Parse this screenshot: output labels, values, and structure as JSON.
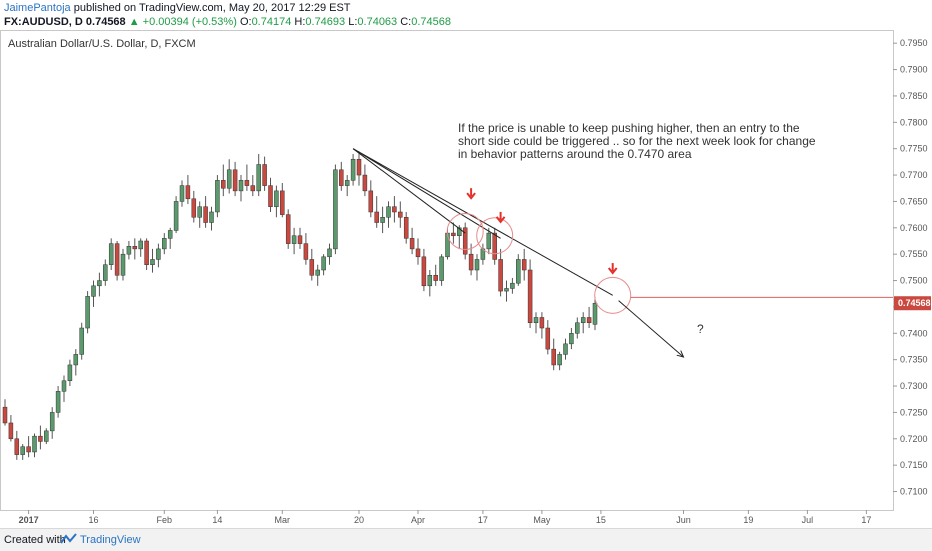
{
  "header": {
    "author": "JaimePantoja",
    "published_text": "published on TradingView.com, May 20, 2017 12:29 EST",
    "symbol_text": "FX:AUDUSD, D",
    "last_price": "0.74568",
    "change_text": "▲ +0.00394 (+0.53%)",
    "o_label": "O:",
    "o_value": "0.74174",
    "h_label": "H:",
    "h_value": "0.74693",
    "l_label": "L:",
    "l_value": "0.74063",
    "c_label": "C:",
    "c_value": "0.74568"
  },
  "pane_title": "Australian Dollar/U.S. Dollar, D, FXCM",
  "annotation": "If the price is unable to keep pushing higher, then an entry to the short side could be triggered .. so for the next week look for change in behavior patterns around the 0.7470 area",
  "question_mark": "?",
  "footer": {
    "created_with": "Created with",
    "brand": "TradingView"
  },
  "colors": {
    "up": "#5b9a6c",
    "down": "#c9483f",
    "level": "#e06060",
    "annot_red": "#e3302b",
    "axis_text": "#555555"
  },
  "chart_data": {
    "type": "candlestick",
    "symbol": "FX:AUDUSD",
    "timeframe": "D",
    "y_range": [
      0.7065,
      0.7975
    ],
    "y_ticks": [
      0.71,
      0.715,
      0.72,
      0.725,
      0.73,
      0.735,
      0.74,
      0.745,
      0.75,
      0.755,
      0.76,
      0.765,
      0.77,
      0.775,
      0.78,
      0.785,
      0.79,
      0.795
    ],
    "x_ticks": [
      {
        "label": "2017",
        "bar": 4
      },
      {
        "label": "16",
        "bar": 15
      },
      {
        "label": "Feb",
        "bar": 27
      },
      {
        "label": "14",
        "bar": 36
      },
      {
        "label": "Mar",
        "bar": 47
      },
      {
        "label": "20",
        "bar": 60
      },
      {
        "label": "Apr",
        "bar": 70
      },
      {
        "label": "17",
        "bar": 81
      },
      {
        "label": "May",
        "bar": 91
      },
      {
        "label": "15",
        "bar": 101
      },
      {
        "label": "Jun",
        "bar": 115
      },
      {
        "label": "19",
        "bar": 126
      },
      {
        "label": "Jul",
        "bar": 136
      },
      {
        "label": "17",
        "bar": 146
      }
    ],
    "last_price_label": "0.74568",
    "level_line": 0.7468,
    "candles": [
      [
        0.726,
        0.7275,
        0.7225,
        0.723
      ],
      [
        0.723,
        0.7245,
        0.7195,
        0.72
      ],
      [
        0.72,
        0.7215,
        0.716,
        0.717
      ],
      [
        0.717,
        0.719,
        0.716,
        0.7185
      ],
      [
        0.7185,
        0.7205,
        0.7165,
        0.7175
      ],
      [
        0.7175,
        0.721,
        0.7165,
        0.7205
      ],
      [
        0.7205,
        0.7225,
        0.718,
        0.7195
      ],
      [
        0.7195,
        0.722,
        0.719,
        0.7215
      ],
      [
        0.7215,
        0.726,
        0.72,
        0.725
      ],
      [
        0.725,
        0.73,
        0.724,
        0.729
      ],
      [
        0.729,
        0.732,
        0.727,
        0.731
      ],
      [
        0.731,
        0.735,
        0.73,
        0.734
      ],
      [
        0.734,
        0.737,
        0.732,
        0.736
      ],
      [
        0.736,
        0.742,
        0.735,
        0.741
      ],
      [
        0.741,
        0.748,
        0.74,
        0.747
      ],
      [
        0.747,
        0.75,
        0.745,
        0.749
      ],
      [
        0.749,
        0.7515,
        0.747,
        0.75
      ],
      [
        0.75,
        0.754,
        0.749,
        0.753
      ],
      [
        0.753,
        0.758,
        0.752,
        0.757
      ],
      [
        0.757,
        0.7575,
        0.75,
        0.751
      ],
      [
        0.751,
        0.756,
        0.75,
        0.755
      ],
      [
        0.755,
        0.7575,
        0.754,
        0.7565
      ],
      [
        0.7565,
        0.758,
        0.754,
        0.756
      ],
      [
        0.756,
        0.758,
        0.7545,
        0.7575
      ],
      [
        0.7575,
        0.758,
        0.752,
        0.753
      ],
      [
        0.753,
        0.756,
        0.7515,
        0.754
      ],
      [
        0.754,
        0.757,
        0.7525,
        0.756
      ],
      [
        0.756,
        0.759,
        0.755,
        0.758
      ],
      [
        0.758,
        0.76,
        0.756,
        0.7595
      ],
      [
        0.7595,
        0.766,
        0.759,
        0.765
      ],
      [
        0.765,
        0.769,
        0.764,
        0.768
      ],
      [
        0.768,
        0.77,
        0.7645,
        0.7655
      ],
      [
        0.7655,
        0.767,
        0.761,
        0.762
      ],
      [
        0.762,
        0.765,
        0.76,
        0.764
      ],
      [
        0.764,
        0.766,
        0.76,
        0.761
      ],
      [
        0.761,
        0.764,
        0.7595,
        0.763
      ],
      [
        0.763,
        0.77,
        0.762,
        0.769
      ],
      [
        0.769,
        0.772,
        0.766,
        0.7675
      ],
      [
        0.7675,
        0.773,
        0.7665,
        0.771
      ],
      [
        0.771,
        0.7725,
        0.766,
        0.767
      ],
      [
        0.767,
        0.77,
        0.765,
        0.769
      ],
      [
        0.769,
        0.772,
        0.767,
        0.768
      ],
      [
        0.768,
        0.77,
        0.766,
        0.767
      ],
      [
        0.767,
        0.774,
        0.766,
        0.772
      ],
      [
        0.772,
        0.7735,
        0.767,
        0.768
      ],
      [
        0.768,
        0.7695,
        0.763,
        0.764
      ],
      [
        0.764,
        0.768,
        0.762,
        0.767
      ],
      [
        0.767,
        0.7685,
        0.762,
        0.7625
      ],
      [
        0.7625,
        0.7635,
        0.756,
        0.757
      ],
      [
        0.757,
        0.76,
        0.755,
        0.7585
      ],
      [
        0.7585,
        0.76,
        0.756,
        0.757
      ],
      [
        0.757,
        0.759,
        0.753,
        0.754
      ],
      [
        0.754,
        0.756,
        0.75,
        0.751
      ],
      [
        0.751,
        0.753,
        0.749,
        0.752
      ],
      [
        0.752,
        0.755,
        0.751,
        0.7545
      ],
      [
        0.7545,
        0.757,
        0.753,
        0.756
      ],
      [
        0.756,
        0.772,
        0.755,
        0.771
      ],
      [
        0.771,
        0.7725,
        0.767,
        0.768
      ],
      [
        0.768,
        0.77,
        0.766,
        0.769
      ],
      [
        0.769,
        0.774,
        0.768,
        0.773
      ],
      [
        0.773,
        0.7745,
        0.768,
        0.77
      ],
      [
        0.77,
        0.772,
        0.766,
        0.767
      ],
      [
        0.767,
        0.769,
        0.762,
        0.763
      ],
      [
        0.763,
        0.766,
        0.76,
        0.761
      ],
      [
        0.761,
        0.764,
        0.759,
        0.762
      ],
      [
        0.762,
        0.765,
        0.76,
        0.764
      ],
      [
        0.764,
        0.766,
        0.761,
        0.763
      ],
      [
        0.763,
        0.765,
        0.76,
        0.762
      ],
      [
        0.762,
        0.763,
        0.757,
        0.758
      ],
      [
        0.758,
        0.76,
        0.755,
        0.756
      ],
      [
        0.756,
        0.758,
        0.753,
        0.7545
      ],
      [
        0.7545,
        0.756,
        0.748,
        0.749
      ],
      [
        0.749,
        0.752,
        0.747,
        0.751
      ],
      [
        0.751,
        0.753,
        0.749,
        0.75
      ],
      [
        0.75,
        0.755,
        0.749,
        0.7545
      ],
      [
        0.7545,
        0.76,
        0.754,
        0.759
      ],
      [
        0.759,
        0.761,
        0.757,
        0.7585
      ],
      [
        0.7585,
        0.7605,
        0.756,
        0.76
      ],
      [
        0.76,
        0.761,
        0.754,
        0.755
      ],
      [
        0.755,
        0.757,
        0.751,
        0.752
      ],
      [
        0.752,
        0.755,
        0.75,
        0.754
      ],
      [
        0.754,
        0.757,
        0.753,
        0.756
      ],
      [
        0.756,
        0.76,
        0.755,
        0.759
      ],
      [
        0.759,
        0.76,
        0.753,
        0.754
      ],
      [
        0.754,
        0.756,
        0.747,
        0.748
      ],
      [
        0.748,
        0.75,
        0.746,
        0.7485
      ],
      [
        0.7485,
        0.7505,
        0.7475,
        0.7495
      ],
      [
        0.7495,
        0.755,
        0.749,
        0.754
      ],
      [
        0.754,
        0.756,
        0.75,
        0.752
      ],
      [
        0.752,
        0.754,
        0.741,
        0.742
      ],
      [
        0.742,
        0.744,
        0.74,
        0.743
      ],
      [
        0.743,
        0.744,
        0.739,
        0.741
      ],
      [
        0.741,
        0.7425,
        0.736,
        0.737
      ],
      [
        0.737,
        0.739,
        0.733,
        0.734
      ],
      [
        0.734,
        0.7365,
        0.733,
        0.736
      ],
      [
        0.736,
        0.739,
        0.735,
        0.738
      ],
      [
        0.738,
        0.741,
        0.737,
        0.74
      ],
      [
        0.74,
        0.743,
        0.739,
        0.742
      ],
      [
        0.742,
        0.744,
        0.74,
        0.743
      ],
      [
        0.743,
        0.745,
        0.741,
        0.742
      ],
      [
        0.7417,
        0.7469,
        0.7406,
        0.7457
      ]
    ],
    "drawings": {
      "trendlines": [
        {
          "from": [
            59,
            0.775
          ],
          "to": [
            103,
            0.7472
          ]
        },
        {
          "from": [
            59,
            0.775
          ],
          "to": [
            78,
            0.759
          ]
        },
        {
          "from": [
            59,
            0.775
          ],
          "to": [
            84,
            0.758
          ]
        }
      ],
      "circles": [
        {
          "center": [
            78,
            0.7593
          ]
        },
        {
          "center": [
            83,
            0.7585
          ]
        },
        {
          "center": [
            103,
            0.7472
          ]
        }
      ],
      "red_arrows": [
        {
          "bar": 79,
          "price": 0.766
        },
        {
          "bar": 84,
          "price": 0.7615
        },
        {
          "bar": 103,
          "price": 0.7518
        }
      ],
      "projection_arrow": {
        "from": [
          104,
          0.7462
        ],
        "to": [
          115,
          0.7355
        ]
      }
    }
  }
}
